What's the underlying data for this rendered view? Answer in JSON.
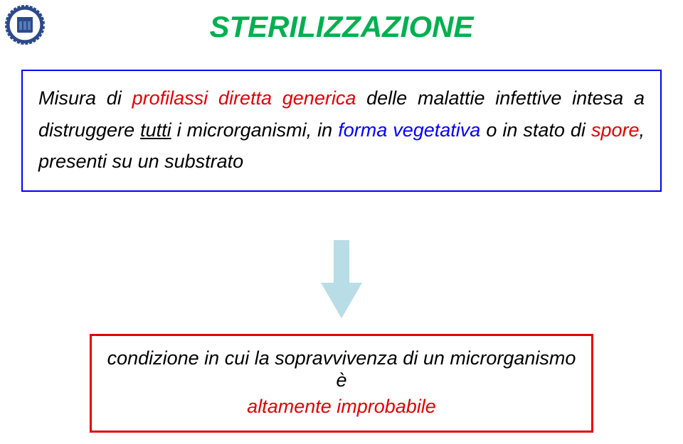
{
  "title": {
    "text": "STERILIZZAZIONE",
    "color": "#00b050",
    "fontsize": 42
  },
  "box1": {
    "border_color": "#0000ff",
    "border_width": 2,
    "body_fontsize": 27,
    "body_color": "#000000",
    "line_height": 1.65,
    "text_parts": {
      "a": "Misura di ",
      "b": "profilassi diretta generica",
      "c": " delle malattie infettive intesa a distruggere ",
      "d": "tutti",
      "e": " i microrganismi, in ",
      "f": "forma vegetativa",
      "g": " o in stato di ",
      "h": "spore",
      "i": ", presenti su un substrato"
    },
    "highlight_color": "#e40000",
    "accent_color": "#0000ff"
  },
  "arrow": {
    "fill": "#b9dde6",
    "stroke": "#b9dde6",
    "width": 58,
    "height": 110
  },
  "box2": {
    "border_color": "#e40000",
    "border_width": 3,
    "body_fontsize": 27,
    "body_color": "#000000",
    "line1": "condizione in cui la sopravvivenza di un microrganismo è",
    "line2": "altamente improbabile",
    "line2_color": "#e40000"
  },
  "logo": {
    "outer_color": "#2b4a8b",
    "inner_color": "#ffffff",
    "accent_color": "#5a7ab5"
  }
}
